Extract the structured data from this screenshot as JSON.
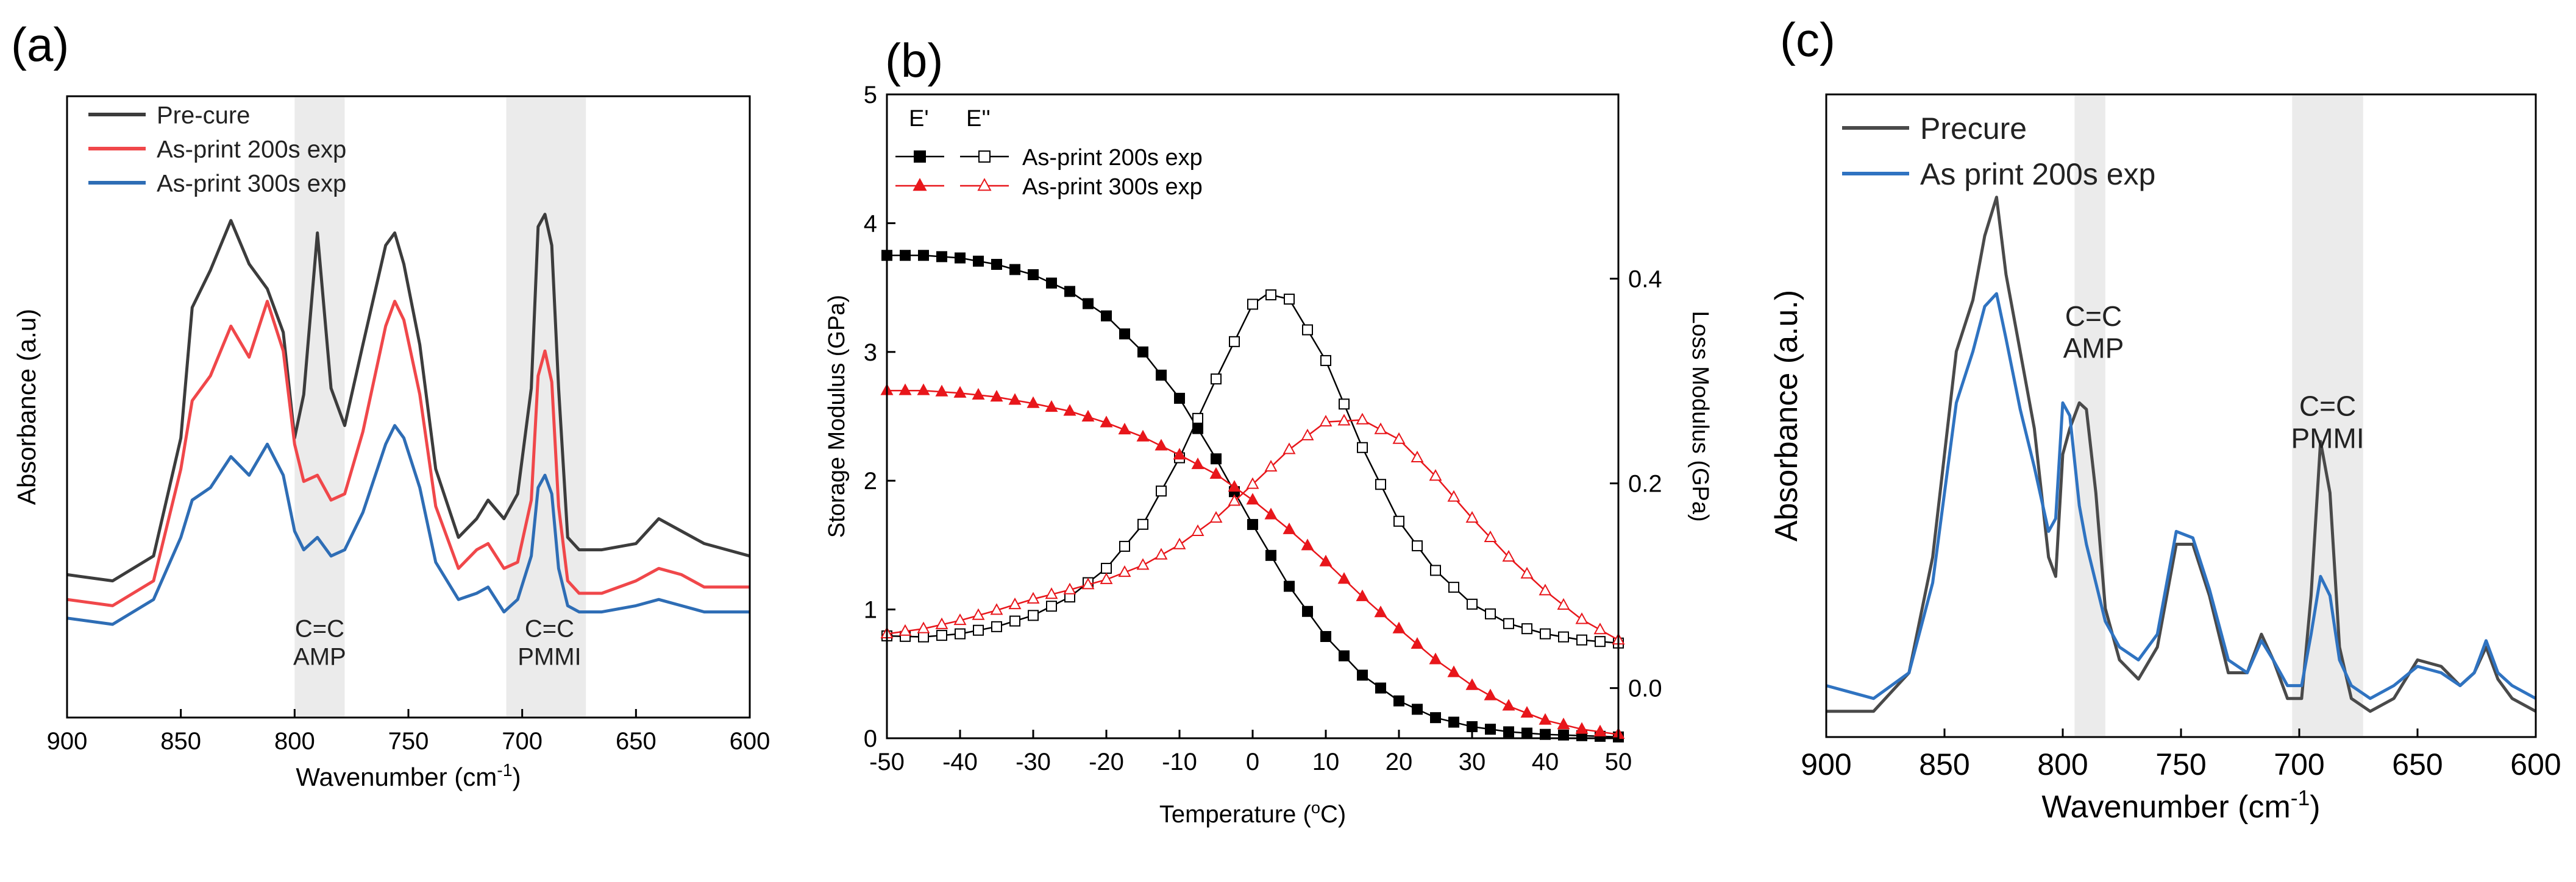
{
  "panel_labels": [
    "(a)",
    "(b)",
    "(c)"
  ],
  "chart_data": [
    {
      "type": "line",
      "panel": "(a)",
      "title": "",
      "xlabel": "Wavenumber (cm",
      "xlabel_sup": "-1",
      "xlabel_tail": ")",
      "ylabel": "Absorbance (a.u)",
      "xlim": [
        900,
        600
      ],
      "ylim": [
        0,
        100
      ],
      "xticks": [
        900,
        850,
        800,
        750,
        700,
        650,
        600
      ],
      "yticks_shown": false,
      "legend_position": "top-left",
      "shaded_bands": [
        [
          800,
          778
        ],
        [
          707,
          672
        ]
      ],
      "annotations": [
        {
          "lines": [
            "C=C",
            "AMP"
          ],
          "x": 789,
          "y": 13
        },
        {
          "lines": [
            "C=C",
            "PMMI"
          ],
          "x": 688,
          "y": 13
        }
      ],
      "series": [
        {
          "name": "Pre-cure",
          "color": "#3c3c3c",
          "x": [
            900,
            880,
            862,
            850,
            845,
            837,
            828,
            820,
            812,
            805,
            800,
            796,
            790,
            784,
            778,
            770,
            760,
            756,
            752,
            745,
            738,
            728,
            720,
            715,
            708,
            702,
            696,
            693,
            690,
            687,
            684,
            680,
            675,
            665,
            650,
            640,
            630,
            620,
            610,
            600
          ],
          "y": [
            23,
            22,
            26,
            45,
            66,
            72,
            80,
            73,
            69,
            62,
            45,
            52,
            78,
            53,
            47,
            60,
            76,
            78,
            73,
            60,
            40,
            29,
            32,
            35,
            32,
            36,
            53,
            79,
            81,
            76,
            53,
            29,
            27,
            27,
            28,
            32,
            30,
            28,
            27,
            26
          ]
        },
        {
          "name": "As-print 200s exp",
          "color": "#f0474a",
          "x": [
            900,
            880,
            862,
            850,
            845,
            837,
            828,
            820,
            812,
            805,
            800,
            796,
            790,
            784,
            778,
            770,
            760,
            756,
            752,
            745,
            738,
            728,
            720,
            715,
            708,
            702,
            696,
            693,
            690,
            687,
            684,
            680,
            675,
            665,
            650,
            640,
            630,
            620,
            610,
            600
          ],
          "y": [
            19,
            18,
            22,
            40,
            51,
            55,
            63,
            58,
            67,
            59,
            44,
            38,
            39,
            35,
            36,
            46,
            63,
            67,
            64,
            52,
            34,
            24,
            27,
            28,
            24,
            25,
            35,
            55,
            59,
            54,
            34,
            22,
            20,
            20,
            22,
            24,
            23,
            21,
            21,
            21
          ]
        },
        {
          "name": "As-print 300s exp",
          "color": "#2e6db5",
          "x": [
            900,
            880,
            862,
            850,
            845,
            837,
            828,
            820,
            812,
            805,
            800,
            796,
            790,
            784,
            778,
            770,
            760,
            756,
            752,
            745,
            738,
            728,
            720,
            715,
            708,
            702,
            696,
            693,
            690,
            687,
            684,
            680,
            675,
            665,
            650,
            640,
            630,
            620,
            610,
            600
          ],
          "y": [
            16,
            15,
            19,
            29,
            35,
            37,
            42,
            39,
            44,
            39,
            30,
            27,
            29,
            26,
            27,
            33,
            44,
            47,
            45,
            37,
            25,
            19,
            20,
            21,
            17,
            19,
            26,
            37,
            39,
            36,
            24,
            18,
            17,
            17,
            18,
            19,
            18,
            17,
            17,
            17
          ]
        }
      ]
    },
    {
      "type": "scatter",
      "panel": "(b)",
      "title": "",
      "xlabel": "Temperature (",
      "xlabel_sup": "o",
      "xlabel_tail": "C)",
      "ylabel": "Storage Modulus (GPa)",
      "ylabel_right": "Loss Modulus (GPa)",
      "xlim": [
        -50,
        50
      ],
      "ylim": [
        0,
        5
      ],
      "ylim_right": [
        -0.049,
        0.58
      ],
      "xticks": [
        -50,
        -40,
        -30,
        -20,
        -10,
        0,
        10,
        20,
        30,
        40,
        50
      ],
      "yticks": [
        0,
        1,
        2,
        3,
        4,
        5
      ],
      "yticks_right": [
        0.0,
        0.2,
        0.4
      ],
      "legend_position": "top-center",
      "legend_headers": [
        "E'",
        "E''"
      ],
      "series": [
        {
          "name": "As-print 200s exp",
          "modulus": "E'",
          "axis": "left",
          "color": "#000000",
          "marker": "filled-square",
          "x": [
            -50,
            -45,
            -40,
            -35,
            -30,
            -25,
            -20,
            -15,
            -10,
            -5,
            0,
            5,
            10,
            15,
            20,
            25,
            30,
            35,
            40,
            45,
            50
          ],
          "y": [
            3.75,
            3.75,
            3.73,
            3.68,
            3.6,
            3.47,
            3.28,
            3.0,
            2.64,
            2.17,
            1.66,
            1.18,
            0.79,
            0.49,
            0.29,
            0.16,
            0.09,
            0.05,
            0.03,
            0.02,
            0.01
          ]
        },
        {
          "name": "As-print 200s exp",
          "modulus": "E''",
          "axis": "right",
          "color": "#000000",
          "marker": "open-square",
          "x": [
            -50,
            -45,
            -40,
            -35,
            -30,
            -25,
            -20,
            -15,
            -10,
            -5,
            0,
            2,
            5,
            10,
            15,
            20,
            25,
            30,
            35,
            40,
            45,
            50
          ],
          "y": [
            0.051,
            0.05,
            0.053,
            0.06,
            0.071,
            0.089,
            0.117,
            0.16,
            0.225,
            0.302,
            0.375,
            0.385,
            0.38,
            0.32,
            0.235,
            0.163,
            0.115,
            0.082,
            0.063,
            0.053,
            0.047,
            0.044
          ]
        },
        {
          "name": "As-print 300s exp",
          "modulus": "E'",
          "axis": "left",
          "color": "#e8161b",
          "marker": "filled-triangle",
          "x": [
            -50,
            -45,
            -40,
            -35,
            -30,
            -25,
            -20,
            -15,
            -10,
            -5,
            0,
            5,
            10,
            15,
            20,
            25,
            30,
            35,
            40,
            45,
            50
          ],
          "y": [
            2.7,
            2.7,
            2.68,
            2.65,
            2.6,
            2.54,
            2.45,
            2.34,
            2.2,
            2.05,
            1.85,
            1.62,
            1.37,
            1.1,
            0.85,
            0.61,
            0.41,
            0.25,
            0.14,
            0.07,
            0.03
          ]
        },
        {
          "name": "As-print 300s exp",
          "modulus": "E''",
          "axis": "right",
          "color": "#e8161b",
          "marker": "open-triangle",
          "x": [
            -50,
            -45,
            -40,
            -35,
            -30,
            -25,
            -20,
            -15,
            -10,
            -5,
            0,
            5,
            10,
            15,
            20,
            25,
            30,
            35,
            40,
            45,
            50
          ],
          "y": [
            0.053,
            0.058,
            0.066,
            0.076,
            0.087,
            0.096,
            0.106,
            0.12,
            0.14,
            0.166,
            0.199,
            0.233,
            0.26,
            0.262,
            0.243,
            0.207,
            0.166,
            0.128,
            0.095,
            0.067,
            0.047
          ]
        }
      ]
    },
    {
      "type": "line",
      "panel": "(c)",
      "title": "",
      "xlabel": "Wavenumber (cm",
      "xlabel_sup": "-1",
      "xlabel_tail": ")",
      "ylabel": "Absorbance (a.u.)",
      "xlim": [
        900,
        600
      ],
      "ylim": [
        0,
        100
      ],
      "xticks": [
        900,
        850,
        800,
        750,
        700,
        650,
        600
      ],
      "yticks_shown": false,
      "legend_position": "top-left",
      "shaded_bands": [
        [
          795,
          782
        ],
        [
          703,
          673
        ]
      ],
      "annotations": [
        {
          "lines": [
            "C=C",
            "AMP"
          ],
          "x": 787,
          "y": 64
        },
        {
          "lines": [
            "C=C",
            "PMMI"
          ],
          "x": 688,
          "y": 50
        }
      ],
      "series": [
        {
          "name": "Precure",
          "color": "#4a4a4a",
          "x": [
            900,
            880,
            865,
            855,
            845,
            838,
            833,
            828,
            824,
            818,
            812,
            806,
            803,
            800,
            797,
            793,
            790,
            786,
            782,
            776,
            768,
            760,
            752,
            745,
            738,
            730,
            722,
            716,
            711,
            705,
            699,
            695,
            691,
            687,
            683,
            678,
            670,
            660,
            650,
            640,
            632,
            626,
            621,
            616,
            610,
            600
          ],
          "y": [
            4,
            4,
            10,
            28,
            60,
            68,
            78,
            84,
            72,
            60,
            48,
            28,
            25,
            44,
            48,
            52,
            51,
            38,
            20,
            12,
            9,
            14,
            30,
            30,
            22,
            10,
            10,
            16,
            12,
            6,
            6,
            22,
            46,
            38,
            14,
            6,
            4,
            6,
            12,
            11,
            8,
            10,
            14,
            9,
            6,
            4
          ]
        },
        {
          "name": "As print 200s exp",
          "color": "#2f73c1",
          "x": [
            900,
            880,
            865,
            855,
            845,
            838,
            833,
            828,
            824,
            818,
            812,
            806,
            803,
            800,
            797,
            793,
            790,
            786,
            782,
            776,
            768,
            760,
            752,
            745,
            738,
            730,
            722,
            716,
            711,
            705,
            699,
            695,
            691,
            687,
            683,
            678,
            670,
            660,
            650,
            640,
            632,
            626,
            621,
            616,
            610,
            600
          ],
          "y": [
            8,
            6,
            10,
            24,
            52,
            60,
            67,
            69,
            62,
            51,
            42,
            32,
            34,
            52,
            50,
            36,
            30,
            24,
            18,
            14,
            12,
            16,
            32,
            31,
            23,
            12,
            10,
            15,
            12,
            8,
            8,
            16,
            25,
            22,
            12,
            8,
            6,
            8,
            11,
            10,
            8,
            10,
            15,
            10,
            8,
            6
          ]
        }
      ]
    }
  ]
}
